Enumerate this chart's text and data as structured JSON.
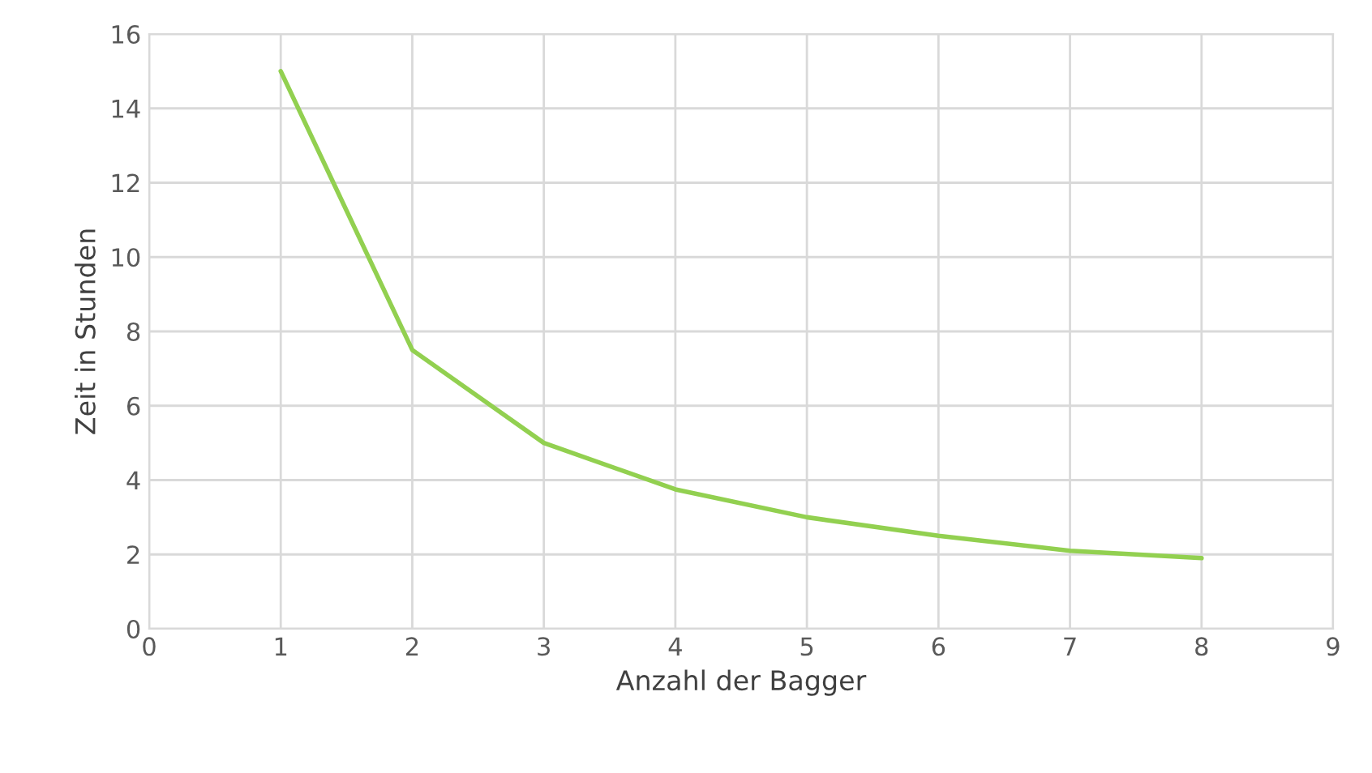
{
  "chart_data": {
    "type": "line",
    "xlabel": "Anzahl der Bagger",
    "ylabel": "Zeit in Stunden",
    "x": [
      1,
      2,
      3,
      4,
      5,
      6,
      7,
      8
    ],
    "series": [
      {
        "color": "#92d050",
        "values": [
          15,
          7.5,
          5,
          3.75,
          3,
          2.5,
          2.1,
          1.9
        ]
      }
    ],
    "xlim": [
      0,
      9
    ],
    "xticks": [
      0,
      1,
      2,
      3,
      4,
      5,
      6,
      7,
      8,
      9
    ],
    "ylim": [
      0,
      16
    ],
    "yticks": [
      0,
      2,
      4,
      6,
      8,
      10,
      12,
      14,
      16
    ],
    "grid": true,
    "marker": "none",
    "line_style": "solid",
    "legend": false
  }
}
